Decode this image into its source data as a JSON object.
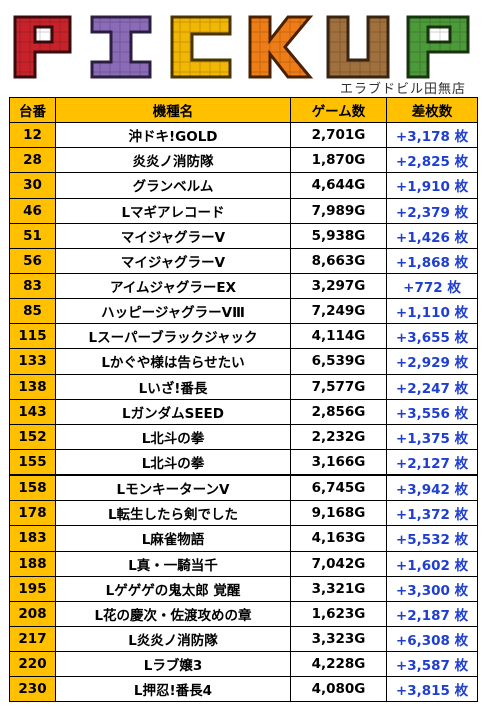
{
  "header": {
    "logo_text": "PICKUP",
    "store_name": "エラブドビル田無店"
  },
  "table": {
    "columns": [
      "台番",
      "機種名",
      "ゲーム数",
      "差枚数"
    ],
    "rows": [
      {
        "machine_no": "12",
        "model": "沖ドキ!GOLD",
        "games": "2,701G",
        "diff": "+3,178 枚"
      },
      {
        "machine_no": "28",
        "model": "炎炎ノ消防隊",
        "games": "1,870G",
        "diff": "+2,825 枚"
      },
      {
        "machine_no": "30",
        "model": "グランベルム",
        "games": "4,644G",
        "diff": "+1,910 枚"
      },
      {
        "machine_no": "46",
        "model": "Lマギアレコード",
        "games": "7,989G",
        "diff": "+2,379 枚"
      },
      {
        "machine_no": "51",
        "model": "マイジャグラーV",
        "games": "5,938G",
        "diff": "+1,426 枚"
      },
      {
        "machine_no": "56",
        "model": "マイジャグラーV",
        "games": "8,663G",
        "diff": "+1,868 枚"
      },
      {
        "machine_no": "83",
        "model": "アイムジャグラーEX",
        "games": "3,297G",
        "diff": "+772 枚"
      },
      {
        "machine_no": "85",
        "model": "ハッピージャグラーVⅢ",
        "games": "7,249G",
        "diff": "+1,110 枚"
      },
      {
        "machine_no": "115",
        "model": "Lスーパーブラックジャック",
        "games": "4,114G",
        "diff": "+3,655 枚"
      },
      {
        "machine_no": "133",
        "model": "Lかぐや様は告らせたい",
        "games": "6,539G",
        "diff": "+2,929 枚"
      },
      {
        "machine_no": "138",
        "model": "Lいざ!番長",
        "games": "7,577G",
        "diff": "+2,247 枚"
      },
      {
        "machine_no": "143",
        "model": "LガンダムSEED",
        "games": "2,856G",
        "diff": "+3,556 枚"
      },
      {
        "machine_no": "152",
        "model": "L北斗の拳",
        "games": "2,232G",
        "diff": "+1,375 枚"
      },
      {
        "machine_no": "155",
        "model": "L北斗の拳",
        "games": "3,166G",
        "diff": "+2,127 枚"
      },
      {
        "machine_no": "158",
        "model": "LモンキーターンV",
        "games": "6,745G",
        "diff": "+3,942 枚"
      },
      {
        "machine_no": "178",
        "model": "L転生したら剣でした",
        "games": "9,168G",
        "diff": "+1,372 枚"
      },
      {
        "machine_no": "183",
        "model": "L麻雀物語",
        "games": "4,163G",
        "diff": "+5,532 枚"
      },
      {
        "machine_no": "188",
        "model": "L真・一騎当千",
        "games": "7,042G",
        "diff": "+1,602 枚"
      },
      {
        "machine_no": "195",
        "model": "Lゲゲゲの鬼太郎 覚醒",
        "games": "3,321G",
        "diff": "+3,300 枚"
      },
      {
        "machine_no": "208",
        "model": "L花の慶次・佐渡攻めの章",
        "games": "1,623G",
        "diff": "+2,187 枚"
      },
      {
        "machine_no": "217",
        "model": "L炎炎ノ消防隊",
        "games": "3,323G",
        "diff": "+6,308 枚"
      },
      {
        "machine_no": "220",
        "model": "Lラブ嬢3",
        "games": "4,228G",
        "diff": "+3,587 枚"
      },
      {
        "machine_no": "230",
        "model": "L押忍!番長4",
        "games": "4,080G",
        "diff": "+3,815 枚"
      }
    ]
  }
}
